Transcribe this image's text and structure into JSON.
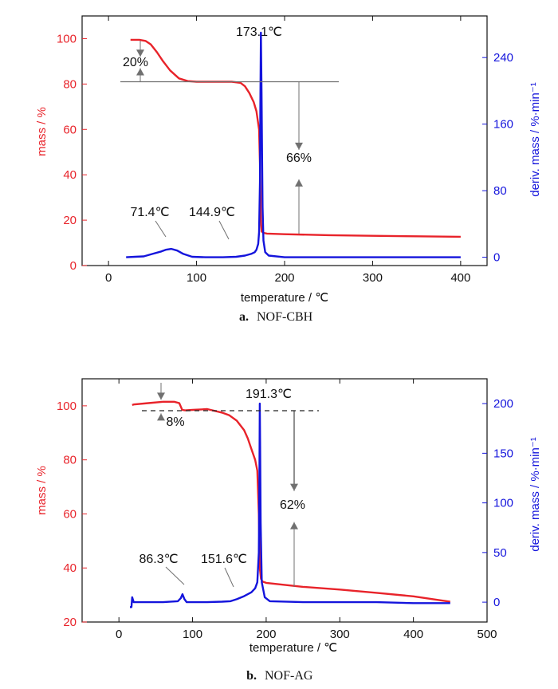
{
  "chart_data": [
    {
      "type": "line",
      "caption_letter": "a.",
      "caption_name": "NOF-CBH",
      "xlabel": "temperature / ℃",
      "ylabel_left": "mass / %",
      "ylabel_right": "deriv. mass / %·min⁻¹",
      "xlim": [
        -30,
        430
      ],
      "ylim_left": [
        0,
        110
      ],
      "ylim_right": [
        -10,
        290
      ],
      "xticks": [
        0,
        100,
        200,
        300,
        400
      ],
      "yticks_left": [
        0,
        20,
        40,
        60,
        80,
        100
      ],
      "yticks_right": [
        0,
        80,
        160,
        240
      ],
      "colors": {
        "mass": "#e8232a",
        "deriv": "#1414dc",
        "annot": "#808080"
      },
      "series": [
        {
          "axis": "left",
          "x": [
            25,
            35,
            42,
            48,
            55,
            62,
            70,
            80,
            90,
            100,
            120,
            140,
            150,
            155,
            160,
            165,
            168,
            171,
            172,
            173,
            174,
            176,
            180,
            200,
            250,
            300,
            350,
            400
          ],
          "y": [
            99.5,
            99.5,
            99.0,
            97.5,
            94.0,
            90.0,
            86.0,
            82.5,
            81.3,
            81.0,
            81.0,
            81.0,
            80.5,
            79.0,
            76.0,
            72.0,
            68.0,
            60.0,
            45.0,
            20.0,
            15.0,
            14.4,
            14.1,
            13.8,
            13.4,
            13.1,
            12.9,
            12.7
          ]
        },
        {
          "axis": "right",
          "x": [
            20,
            30,
            40,
            50,
            60,
            65,
            71.4,
            78,
            85,
            95,
            110,
            130,
            145,
            155,
            162,
            166,
            168,
            170,
            171,
            172,
            172.5,
            173.1,
            173.8,
            174.5,
            175,
            176,
            178,
            182,
            200,
            250,
            300,
            350,
            400
          ],
          "y": [
            0,
            0.5,
            1,
            4,
            7,
            9,
            10,
            8,
            4,
            0.5,
            0,
            0,
            0.5,
            2,
            4,
            6,
            9,
            16,
            30,
            90,
            180,
            270,
            200,
            120,
            60,
            20,
            6,
            2,
            0,
            0,
            0,
            0,
            0
          ]
        }
      ],
      "annotations": {
        "peak": "173.1℃",
        "shoulder_1": "71.4℃",
        "shoulder_2": "144.9℃",
        "loss_1": "20%",
        "loss_2": "66%"
      }
    },
    {
      "type": "line",
      "caption_letter": "b.",
      "caption_name": "NOF-AG",
      "xlabel": "temperature / ℃",
      "ylabel_left": "mass / %",
      "ylabel_right": "deriv. mass / %·min⁻¹",
      "xlim": [
        -50,
        500
      ],
      "ylim_left": [
        20,
        110
      ],
      "ylim_right": [
        -20,
        225
      ],
      "xticks": [
        0,
        100,
        200,
        300,
        400,
        500
      ],
      "yticks_left": [
        20,
        40,
        60,
        80,
        100
      ],
      "yticks_right": [
        0,
        50,
        100,
        150,
        200
      ],
      "colors": {
        "mass": "#e8232a",
        "deriv": "#1414dc",
        "annot": "#808080"
      },
      "series": [
        {
          "axis": "left",
          "x": [
            18,
            20,
            40,
            60,
            75,
            82,
            86,
            90,
            100,
            120,
            140,
            150,
            160,
            170,
            175,
            180,
            185,
            188,
            190,
            191.3,
            193,
            195,
            200,
            250,
            300,
            350,
            400,
            450
          ],
          "y": [
            100.3,
            100.5,
            101.0,
            101.5,
            101.5,
            101.0,
            98.5,
            98.3,
            98.5,
            98.8,
            97.5,
            96.5,
            94.5,
            91.0,
            88.0,
            84.0,
            80.0,
            76.0,
            60.0,
            40.0,
            36.0,
            35.0,
            34.5,
            33.0,
            32.0,
            30.8,
            29.5,
            27.5
          ]
        },
        {
          "axis": "right",
          "x": [
            15,
            17,
            18,
            20,
            40,
            60,
            80,
            84,
            86.3,
            89,
            92,
            100,
            120,
            140,
            151.6,
            160,
            170,
            180,
            185,
            188,
            190,
            190.8,
            191.3,
            191.8,
            192.5,
            194,
            198,
            205,
            250,
            300,
            350,
            400,
            450
          ],
          "y": [
            -5,
            -5,
            5,
            0,
            0,
            0,
            1,
            4,
            8,
            3,
            0,
            0,
            0,
            0.5,
            1,
            3,
            6,
            10,
            14,
            20,
            50,
            120,
            200,
            160,
            80,
            20,
            5,
            1,
            0,
            0,
            0,
            -1,
            -1
          ]
        }
      ],
      "annotations": {
        "peak": "191.3℃",
        "shoulder_1": "86.3℃",
        "shoulder_2": "151.6℃",
        "loss_1": "8%",
        "loss_2": "62%"
      }
    }
  ]
}
